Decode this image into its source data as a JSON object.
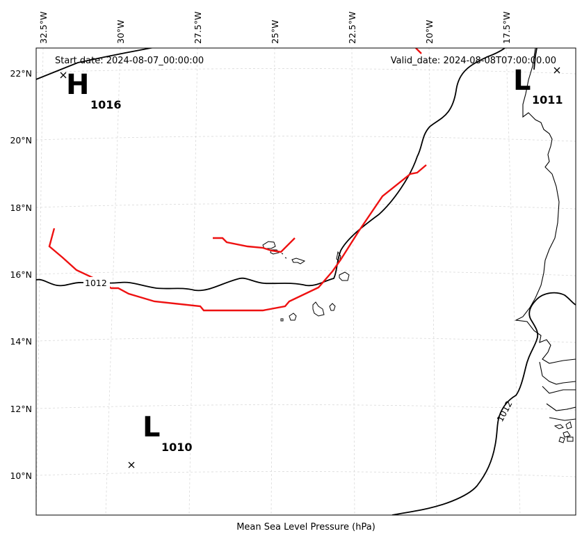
{
  "title": {
    "start_date": "Start date: 2024-08-07_00:00:00",
    "valid_date": "Valid_date: 2024-08-08T07:00:00.00"
  },
  "xlabel": "Mean Sea Level Pressure (hPa)",
  "lon_ticks": [
    "32.5°W",
    "30°W",
    "27.5°W",
    "25°W",
    "22.5°W",
    "20°W",
    "17.5°W"
  ],
  "lat_ticks": [
    "22°N",
    "20°N",
    "18°N",
    "16°N",
    "14°N",
    "12°N",
    "10°N"
  ],
  "pressure_centers": [
    {
      "type": "H",
      "value": "1016"
    },
    {
      "type": "L",
      "value": "1011"
    },
    {
      "type": "L",
      "value": "1010"
    }
  ],
  "contour_labels": [
    "1012",
    "1012"
  ],
  "colors": {
    "isobar": "#000000",
    "trough": "#ee1111",
    "coast": "#000000",
    "grid": "#d9d9d9"
  }
}
